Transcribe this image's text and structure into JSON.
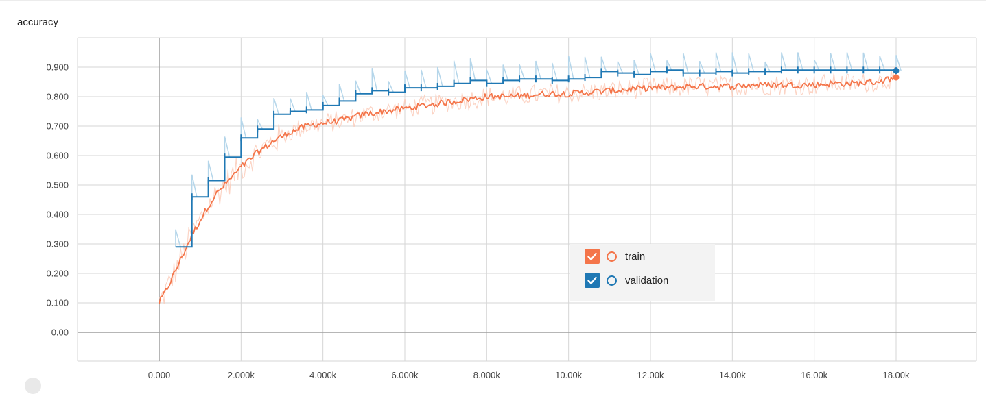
{
  "card": {
    "title": "accuracy"
  },
  "colors": {
    "train": "#f4754a",
    "train_raw": "#fbc9b6",
    "validation": "#1f78b4",
    "validation_raw": "#b5d6ea",
    "grid": "#d6d6d6",
    "zero_axis": "#9e9e9e"
  },
  "legend": {
    "items": [
      {
        "label": "train",
        "color": "#f4754a",
        "checked": true
      },
      {
        "label": "validation",
        "color": "#1f78b4",
        "checked": true
      }
    ]
  },
  "chart_data": {
    "type": "line",
    "title": "accuracy",
    "xlabel": "",
    "ylabel": "",
    "xlim": [
      -2000,
      20000
    ],
    "ylim": [
      -0.1,
      0.99
    ],
    "grid": true,
    "legend_position": "bottom-center",
    "x_ticks": [
      0,
      2000,
      4000,
      6000,
      8000,
      10000,
      12000,
      14000,
      16000,
      18000
    ],
    "x_tick_labels": [
      "0.000",
      "2.000k",
      "4.000k",
      "6.000k",
      "8.000k",
      "10.00k",
      "12.00k",
      "14.00k",
      "16.00k",
      "18.00k"
    ],
    "y_ticks": [
      0,
      0.1,
      0.2,
      0.3,
      0.4,
      0.5,
      0.6,
      0.7,
      0.8,
      0.9
    ],
    "y_tick_labels": [
      "0.00",
      "0.100",
      "0.200",
      "0.300",
      "0.400",
      "0.500",
      "0.600",
      "0.700",
      "0.800",
      "0.900"
    ],
    "series": [
      {
        "name": "train",
        "color": "#f4754a",
        "x": [
          0,
          200,
          400,
          600,
          800,
          1000,
          1200,
          1400,
          1600,
          1800,
          2000,
          2400,
          2800,
          3200,
          3600,
          4000,
          4500,
          5000,
          5500,
          6000,
          6500,
          7000,
          7500,
          8000,
          8500,
          9000,
          9500,
          10000,
          10500,
          11000,
          11500,
          12000,
          12500,
          13000,
          13500,
          14000,
          14500,
          15000,
          15500,
          16000,
          16500,
          17000,
          17500,
          18000
        ],
        "y": [
          0.1,
          0.15,
          0.21,
          0.27,
          0.33,
          0.38,
          0.43,
          0.47,
          0.5,
          0.53,
          0.56,
          0.61,
          0.65,
          0.68,
          0.7,
          0.71,
          0.72,
          0.74,
          0.75,
          0.76,
          0.77,
          0.78,
          0.79,
          0.8,
          0.8,
          0.805,
          0.81,
          0.81,
          0.815,
          0.82,
          0.825,
          0.83,
          0.83,
          0.835,
          0.835,
          0.835,
          0.84,
          0.84,
          0.84,
          0.84,
          0.845,
          0.845,
          0.85,
          0.865
        ]
      },
      {
        "name": "validation",
        "color": "#1f78b4",
        "x": [
          400,
          800,
          1200,
          1600,
          2000,
          2400,
          2800,
          3200,
          3600,
          4000,
          4400,
          4800,
          5200,
          5600,
          6000,
          6400,
          6800,
          7200,
          7600,
          8000,
          8400,
          8800,
          9200,
          9600,
          10000,
          10400,
          10800,
          11200,
          11600,
          12000,
          12400,
          12800,
          13200,
          13600,
          14000,
          14400,
          14800,
          15200,
          15600,
          16000,
          16400,
          16800,
          17200,
          17600,
          18000
        ],
        "y": [
          0.29,
          0.46,
          0.515,
          0.595,
          0.66,
          0.69,
          0.74,
          0.75,
          0.755,
          0.77,
          0.785,
          0.81,
          0.82,
          0.815,
          0.83,
          0.83,
          0.835,
          0.845,
          0.855,
          0.845,
          0.855,
          0.86,
          0.86,
          0.855,
          0.86,
          0.865,
          0.885,
          0.88,
          0.875,
          0.885,
          0.89,
          0.88,
          0.88,
          0.885,
          0.88,
          0.885,
          0.885,
          0.89,
          0.89,
          0.89,
          0.89,
          0.89,
          0.89,
          0.89,
          0.888
        ]
      }
    ]
  }
}
